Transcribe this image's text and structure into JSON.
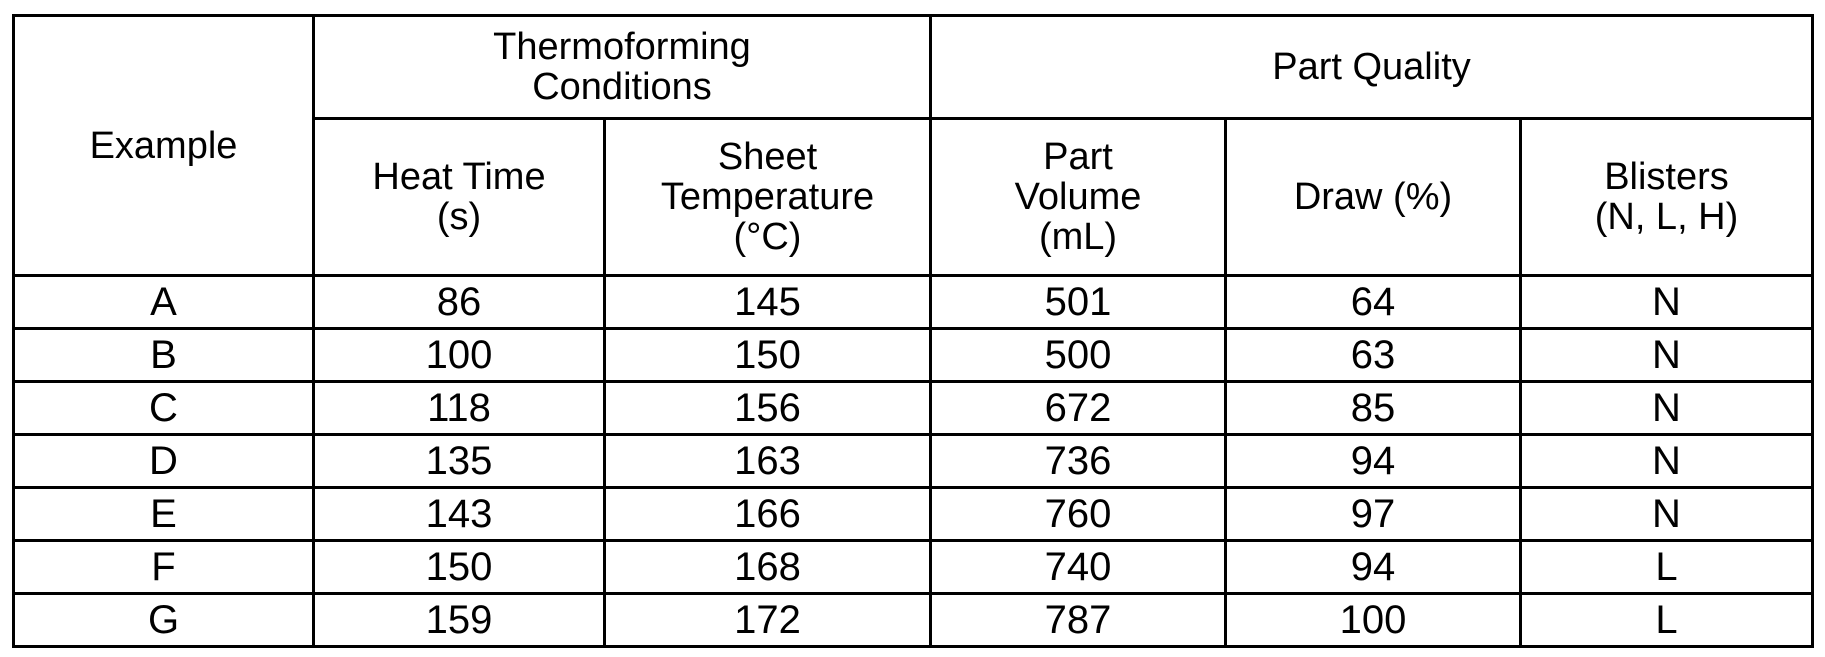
{
  "table": {
    "example_header": "Example",
    "groups": [
      {
        "label": "Thermoforming\nConditions",
        "columns": [
          "Heat Time\n(s)",
          "Sheet\nTemperature\n(°C)"
        ]
      },
      {
        "label": "Part Quality",
        "columns": [
          "Part\nVolume\n(mL)",
          "Draw (%)",
          "Blisters\n(N, L, H)"
        ]
      }
    ],
    "rows": [
      [
        "A",
        86,
        145,
        501,
        64,
        "N"
      ],
      [
        "B",
        100,
        150,
        500,
        63,
        "N"
      ],
      [
        "C",
        118,
        156,
        672,
        85,
        "N"
      ],
      [
        "D",
        135,
        163,
        736,
        94,
        "N"
      ],
      [
        "E",
        143,
        166,
        760,
        97,
        "N"
      ],
      [
        "F",
        150,
        168,
        740,
        94,
        "L"
      ],
      [
        "G",
        159,
        172,
        787,
        100,
        "L"
      ]
    ]
  }
}
